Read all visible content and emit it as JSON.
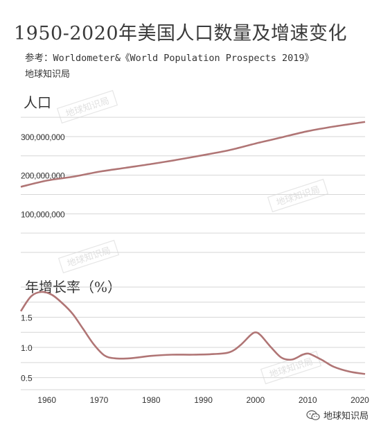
{
  "header": {
    "title": "1950-2020年美国人口数量及增速变化",
    "source": "参考：Worldometer&《World Population Prospects 2019》",
    "author": "地球知识局"
  },
  "footer": {
    "label": "地球知识局",
    "icon": "wechat-icon"
  },
  "watermark": "地球知识局",
  "colors": {
    "line": "#b07575",
    "grid": "#d6d6d6",
    "axis_text": "#333333"
  },
  "chart_data": [
    {
      "type": "line",
      "title": "人口",
      "xlim": [
        1955,
        2021
      ],
      "ylim": [
        0,
        370000000
      ],
      "y_ticks": [
        100000000,
        200000000,
        300000000
      ],
      "y_tick_labels": [
        "100,000,000",
        "200,000,000",
        "300,000,000"
      ],
      "grid": true,
      "x": [
        1955,
        1960,
        1965,
        1970,
        1975,
        1980,
        1985,
        1990,
        1995,
        2000,
        2005,
        2010,
        2015,
        2020,
        2021
      ],
      "values": [
        170000000,
        186000000,
        196000000,
        209000000,
        219000000,
        229000000,
        240000000,
        252000000,
        265000000,
        282000000,
        298000000,
        314000000,
        326000000,
        336000000,
        338000000
      ]
    },
    {
      "type": "line",
      "title": "年增长率（%）",
      "xlim": [
        1955,
        2021
      ],
      "ylim": [
        0.3,
        2.0
      ],
      "y_ticks": [
        0.5,
        1.0,
        1.5
      ],
      "y_tick_labels": [
        "0.5",
        "1.0",
        "1.5"
      ],
      "x_ticks": [
        1960,
        1970,
        1980,
        1990,
        2000,
        2010,
        2020
      ],
      "x_tick_labels": [
        "1960",
        "1970",
        "1980",
        "1990",
        "2000",
        "2010",
        "2020"
      ],
      "grid": true,
      "x": [
        1955,
        1957,
        1959,
        1961,
        1963,
        1965,
        1967,
        1969,
        1971,
        1973,
        1976,
        1980,
        1984,
        1988,
        1992,
        1995,
        1997,
        1999,
        2000,
        2001,
        2003,
        2005,
        2007,
        2009,
        2010,
        2011,
        2013,
        2015,
        2018,
        2021
      ],
      "values": [
        1.6,
        1.85,
        1.92,
        1.87,
        1.73,
        1.55,
        1.3,
        1.05,
        0.87,
        0.82,
        0.82,
        0.86,
        0.88,
        0.88,
        0.89,
        0.92,
        1.03,
        1.2,
        1.25,
        1.2,
        1.0,
        0.83,
        0.8,
        0.88,
        0.9,
        0.87,
        0.78,
        0.68,
        0.6,
        0.56
      ]
    }
  ]
}
